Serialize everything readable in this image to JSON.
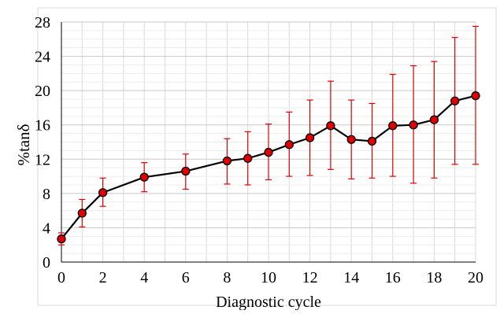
{
  "chart_data": {
    "type": "line",
    "title": "",
    "xlabel": "Diagnostic cycle",
    "ylabel": "%tanδ",
    "xlim": [
      0,
      20
    ],
    "ylim": [
      0,
      28
    ],
    "x_ticks": [
      0,
      2,
      4,
      6,
      8,
      10,
      12,
      14,
      16,
      18,
      20
    ],
    "y_ticks": [
      0,
      4,
      8,
      12,
      16,
      20,
      24,
      28
    ],
    "x_tick_labels": [
      "0",
      "2",
      "4",
      "6",
      "8",
      "10",
      "12",
      "14",
      "16",
      "18",
      "20"
    ],
    "y_tick_labels": [
      "0",
      "4",
      "8",
      "12",
      "16",
      "20",
      "24",
      "28"
    ],
    "grid": true,
    "legend": "none",
    "colors": {
      "line": "#000000",
      "marker_fill": "#e00000",
      "marker_stroke": "#000000",
      "error_bar": "#e00000",
      "grid": "#d9d9d9"
    },
    "series": [
      {
        "x": [
          0,
          1,
          2,
          4,
          6,
          8,
          9,
          10,
          11,
          12,
          13,
          14,
          15,
          16,
          17,
          18,
          19,
          20
        ],
        "y": [
          2.7,
          5.7,
          8.1,
          9.9,
          10.6,
          11.8,
          12.1,
          12.8,
          13.7,
          14.5,
          15.9,
          14.3,
          14.1,
          15.9,
          16.0,
          16.6,
          18.8,
          19.4
        ],
        "y_err_lower": [
          2.0,
          4.1,
          6.5,
          8.2,
          8.5,
          9.1,
          9.0,
          9.6,
          10.0,
          10.1,
          10.8,
          9.7,
          9.8,
          10.0,
          9.2,
          9.8,
          11.4,
          11.4
        ],
        "y_err_upper": [
          3.4,
          7.3,
          9.8,
          11.6,
          12.6,
          14.4,
          15.2,
          16.1,
          17.5,
          18.9,
          21.1,
          18.9,
          18.5,
          21.9,
          22.9,
          23.4,
          26.2,
          27.5
        ]
      }
    ]
  }
}
